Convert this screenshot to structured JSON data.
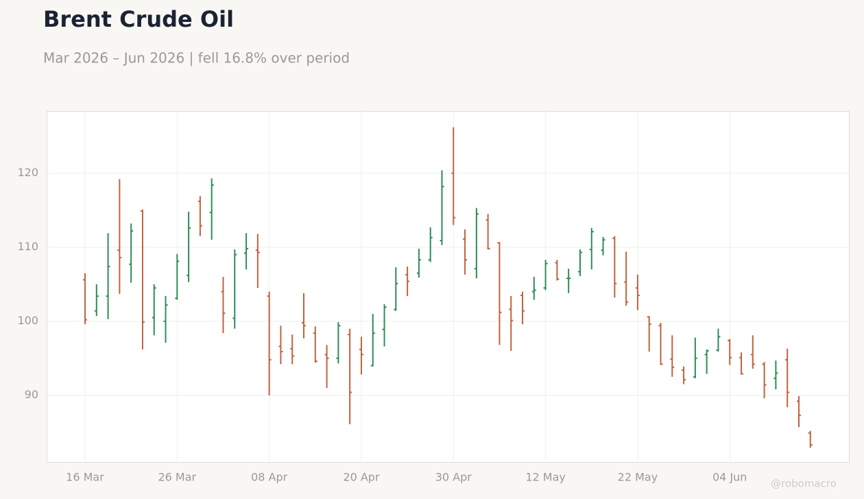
{
  "chart_data": {
    "type": "ohlc",
    "title": "Brent Crude Oil",
    "subtitle": "Mar 2026 – Jun 2026 | fell 16.8% over period",
    "watermark": "@robomacro",
    "categories": [
      "16 Mar",
      null,
      null,
      null,
      null,
      null,
      null,
      null,
      "26 Mar",
      null,
      null,
      null,
      null,
      null,
      null,
      null,
      "08 Apr",
      null,
      null,
      null,
      null,
      null,
      null,
      null,
      "20 Apr",
      null,
      null,
      null,
      null,
      null,
      null,
      null,
      "30 Apr",
      null,
      null,
      null,
      null,
      null,
      null,
      null,
      "12 May",
      null,
      null,
      null,
      null,
      null,
      null,
      null,
      "22 May",
      null,
      null,
      null,
      null,
      null,
      null,
      null,
      "04 Jun",
      null,
      null,
      null,
      null,
      null,
      null,
      null
    ],
    "open": [
      105.6,
      101.4,
      103.4,
      109.6,
      107.7,
      114.9,
      100.5,
      100.0,
      103.1,
      106.2,
      116.2,
      114.7,
      104.0,
      100.4,
      109.2,
      109.6,
      103.4,
      96.6,
      96.3,
      99.8,
      98.4,
      95.5,
      95.0,
      98.2,
      96.2,
      94.0,
      98.9,
      101.6,
      106.3,
      106.5,
      108.3,
      110.9,
      120.0,
      111.1,
      107.1,
      113.7,
      110.6,
      101.6,
      103.5,
      104.0,
      104.5,
      107.9,
      105.8,
      106.7,
      109.7,
      109.6,
      111.2,
      105.3,
      104.5,
      100.6,
      99.4,
      94.9,
      93.4,
      92.5,
      95.5,
      96.1,
      97.4,
      95.1,
      95.5,
      94.2,
      92.3,
      94.8,
      89.2,
      84.9
    ],
    "high": [
      106.5,
      105.0,
      111.9,
      119.2,
      113.2,
      115.1,
      105.0,
      103.4,
      109.1,
      114.8,
      116.9,
      119.3,
      106.0,
      109.7,
      111.9,
      111.8,
      104.0,
      99.4,
      98.2,
      103.8,
      99.3,
      96.8,
      99.9,
      99.0,
      97.9,
      101.0,
      102.3,
      107.3,
      107.4,
      109.8,
      112.7,
      120.4,
      126.2,
      112.4,
      115.3,
      114.5,
      110.7,
      103.4,
      104.0,
      106.0,
      108.3,
      108.3,
      107.1,
      109.7,
      112.6,
      111.4,
      111.5,
      109.4,
      106.3,
      100.7,
      99.8,
      98.1,
      93.9,
      97.8,
      96.2,
      99.0,
      97.6,
      95.8,
      98.1,
      94.5,
      94.7,
      96.3,
      89.9,
      85.2
    ],
    "low": [
      99.6,
      100.7,
      100.3,
      103.7,
      105.2,
      96.2,
      98.1,
      97.1,
      102.9,
      105.3,
      111.5,
      111.0,
      98.4,
      99.0,
      107.0,
      104.5,
      90.0,
      94.2,
      94.2,
      97.7,
      94.4,
      91.0,
      94.3,
      86.1,
      92.8,
      93.9,
      96.6,
      101.4,
      103.4,
      105.9,
      108.0,
      110.3,
      113.0,
      106.3,
      105.8,
      109.7,
      96.8,
      96.0,
      99.6,
      102.9,
      104.2,
      105.5,
      103.8,
      106.1,
      107.0,
      108.9,
      103.2,
      102.1,
      101.5,
      95.9,
      94.1,
      92.5,
      91.5,
      92.3,
      92.9,
      95.9,
      94.1,
      92.8,
      93.6,
      89.6,
      90.8,
      88.4,
      85.7,
      82.9
    ],
    "close": [
      100.2,
      103.4,
      107.4,
      108.6,
      112.2,
      99.9,
      104.5,
      102.2,
      108.1,
      112.6,
      112.9,
      118.4,
      101.1,
      109.0,
      109.8,
      109.3,
      94.8,
      95.9,
      95.3,
      99.4,
      94.6,
      95.0,
      99.4,
      90.4,
      95.5,
      98.4,
      101.9,
      105.1,
      105.4,
      108.3,
      111.3,
      118.2,
      114.0,
      108.3,
      114.5,
      109.8,
      101.2,
      100.1,
      101.4,
      104.2,
      107.8,
      105.7,
      105.8,
      109.3,
      112.1,
      111.0,
      105.1,
      102.6,
      103.5,
      99.6,
      94.2,
      93.8,
      92.1,
      95.0,
      96.0,
      97.9,
      95.1,
      92.9,
      94.2,
      91.4,
      93.0,
      90.4,
      87.3,
      83.3
    ],
    "up_color": "#2e8b57",
    "down_color": "#c0623f",
    "ylim": [
      80.9,
      128.4
    ],
    "yticks": [
      90,
      100,
      110,
      120
    ],
    "grid": true
  }
}
